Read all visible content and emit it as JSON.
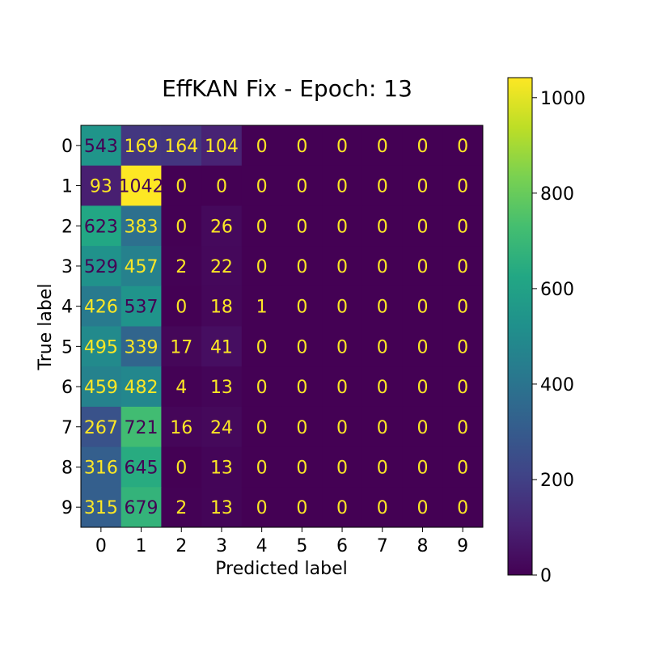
{
  "chart_data": {
    "type": "heatmap",
    "title": "EffKAN Fix - Epoch: 13",
    "xlabel": "Predicted label",
    "ylabel": "True label",
    "x_categories": [
      "0",
      "1",
      "2",
      "3",
      "4",
      "5",
      "6",
      "7",
      "8",
      "9"
    ],
    "y_categories": [
      "0",
      "1",
      "2",
      "3",
      "4",
      "5",
      "6",
      "7",
      "8",
      "9"
    ],
    "values": [
      [
        543,
        169,
        164,
        104,
        0,
        0,
        0,
        0,
        0,
        0
      ],
      [
        93,
        1042,
        0,
        0,
        0,
        0,
        0,
        0,
        0,
        0
      ],
      [
        623,
        383,
        0,
        26,
        0,
        0,
        0,
        0,
        0,
        0
      ],
      [
        529,
        457,
        2,
        22,
        0,
        0,
        0,
        0,
        0,
        0
      ],
      [
        426,
        537,
        0,
        18,
        1,
        0,
        0,
        0,
        0,
        0
      ],
      [
        495,
        339,
        17,
        41,
        0,
        0,
        0,
        0,
        0,
        0
      ],
      [
        459,
        482,
        4,
        13,
        0,
        0,
        0,
        0,
        0,
        0
      ],
      [
        267,
        721,
        16,
        24,
        0,
        0,
        0,
        0,
        0,
        0
      ],
      [
        316,
        645,
        0,
        13,
        0,
        0,
        0,
        0,
        0,
        0
      ],
      [
        315,
        679,
        2,
        13,
        0,
        0,
        0,
        0,
        0,
        0
      ]
    ],
    "colormap": "viridis",
    "vmin": 0,
    "vmax": 1042,
    "colorbar": {
      "ticks": [
        0,
        200,
        400,
        600,
        800,
        1000
      ],
      "tick_labels": [
        "0",
        "200",
        "400",
        "600",
        "800",
        "1000"
      ]
    },
    "text_colors": {
      "light": "#fde725",
      "dark": "#440154"
    }
  }
}
